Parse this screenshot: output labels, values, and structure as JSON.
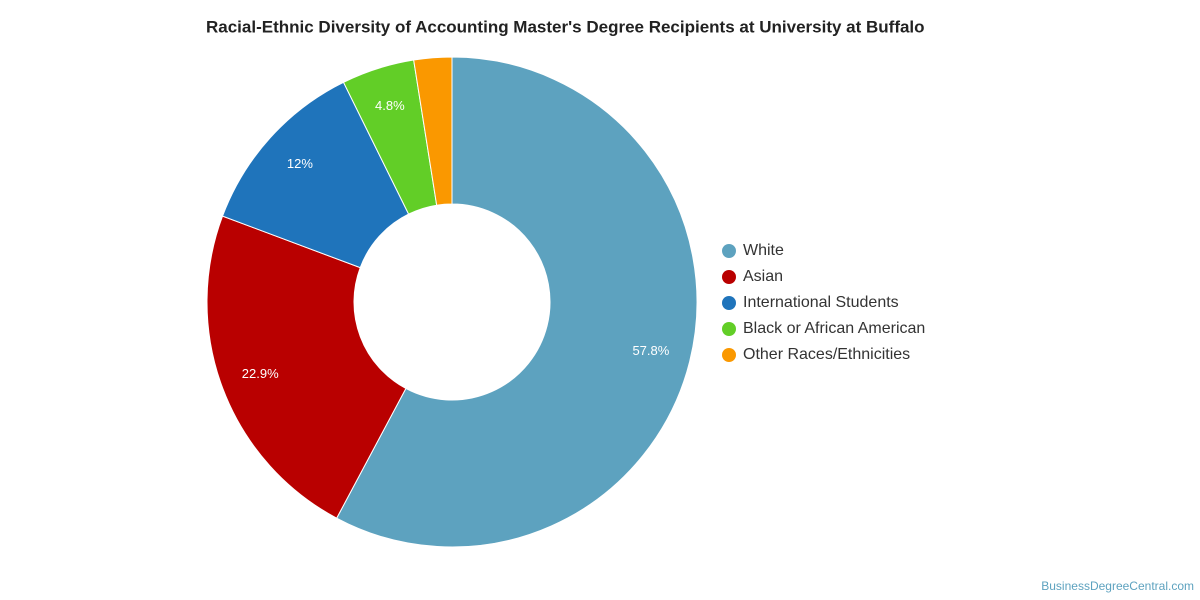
{
  "chart_data": {
    "type": "donut",
    "title": "Racial-Ethnic Diversity of Accounting Master's Degree Recipients at University at Buffalo",
    "categories": [
      "White",
      "Asian",
      "International Students",
      "Black or African American",
      "Other Races/Ethnicities"
    ],
    "values": [
      57.8,
      22.9,
      12,
      4.8,
      2.5
    ],
    "value_labels": [
      "57.8%",
      "22.9%",
      "12%",
      "4.8%",
      null
    ],
    "colors": [
      "#5da2bf",
      "#b90000",
      "#1f74bb",
      "#62ce27",
      "#fa9800"
    ],
    "legend": "right",
    "source": "BusinessDegreeCentral.com"
  }
}
